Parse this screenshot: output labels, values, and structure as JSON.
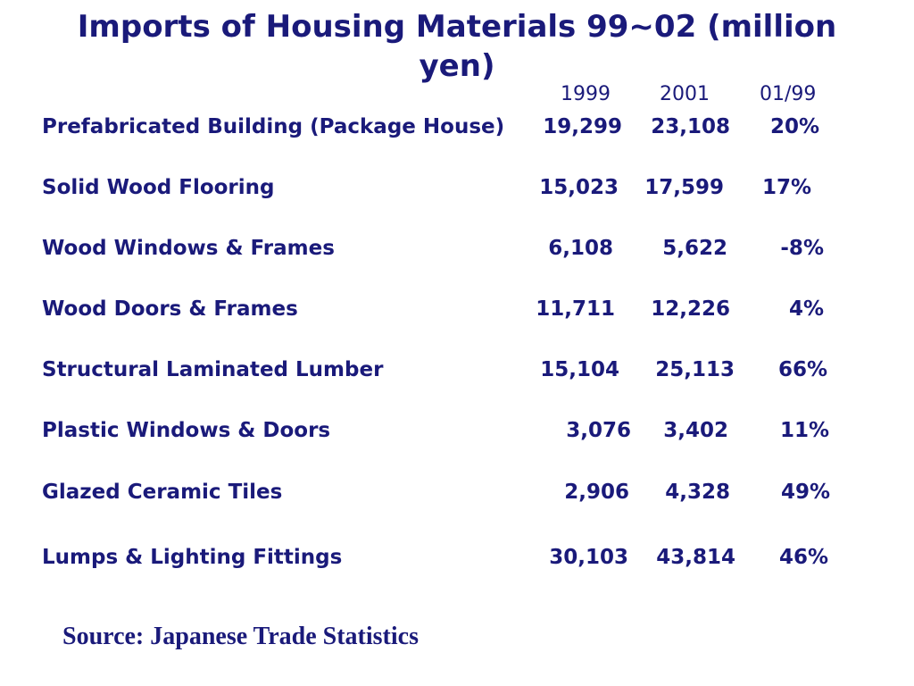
{
  "title": "Imports of Housing Materials 99~02  (million yen)",
  "columns": [
    "1999",
    "2001",
    "01/99"
  ],
  "rows": [
    {
      "label": "Prefabricated Building (Package House)",
      "v1999": "19,299",
      "v2001": "23,108",
      "change": "20%"
    },
    {
      "label": "Solid Wood Flooring",
      "v1999": "15,023",
      "v2001": "17,599",
      "change": "17%"
    },
    {
      "label": "Wood Windows & Frames",
      "v1999": "6,108",
      "v2001": "5,622",
      "change": "-8%"
    },
    {
      "label": "Wood Doors & Frames",
      "v1999": "11,711",
      "v2001": "12,226",
      "change": "4%"
    },
    {
      "label": "Structural Laminated Lumber",
      "v1999": "15,104",
      "v2001": "25,113",
      "change": "66%"
    },
    {
      "label": "Plastic Windows & Doors",
      "v1999": "3,076",
      "v2001": "3,402",
      "change": "11%"
    },
    {
      "label": "Glazed Ceramic Tiles",
      "v1999": "2,906",
      "v2001": "4,328",
      "change": "49%"
    },
    {
      "label": "Lumps & Lighting Fittings",
      "v1999": "30,103",
      "v2001": "43,814",
      "change": "46%"
    }
  ],
  "source": "Source:  Japanese Trade Statistics",
  "colors": {
    "text": "#1a1a7a",
    "background": "#ffffff"
  }
}
